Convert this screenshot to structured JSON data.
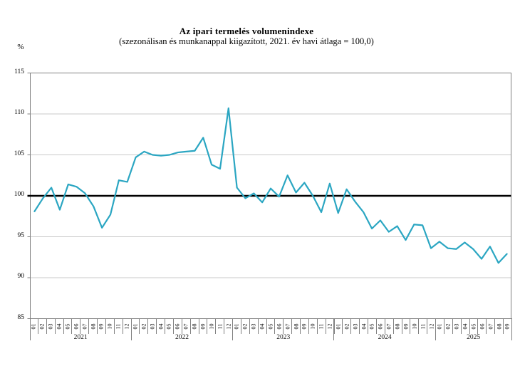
{
  "header": {
    "title": "Az ipari termelés volumenindexe",
    "subtitle": "(szezonálisan és munkanappal kiigazított, 2021. év havi átlaga = 100,0)"
  },
  "axes": {
    "y_unit": "%",
    "y_ticks": [
      115,
      110,
      105,
      100,
      95,
      90,
      85
    ],
    "baseline_value": 100
  },
  "colors": {
    "line": "#2BA6C2",
    "baseline": "#000000",
    "gridline": "#C9C9C9",
    "frame": "#808080"
  },
  "chart_data": {
    "type": "line",
    "title": "Az ipari termelés volumenindexe",
    "subtitle": "(szezonálisan és munkanappal kiigazított, 2021. év havi átlaga = 100,0)",
    "ylabel": "%",
    "ylim": [
      85,
      115
    ],
    "ytick_interval": 5,
    "baseline": 100,
    "grid": "horizontal",
    "legend": "none",
    "series": [
      {
        "name": "Ipari termelés volumenindexe (szezonálisan és munkanappal kiigazított)",
        "color": "#2BA6C2",
        "years": [
          {
            "year": "2021",
            "months": [
              "01",
              "02",
              "03",
              "04",
              "05",
              "06",
              "07",
              "08",
              "09",
              "10",
              "11",
              "12"
            ],
            "values": [
              98.1,
              99.7,
              101.0,
              98.3,
              101.4,
              101.1,
              100.3,
              98.7,
              96.1,
              97.7,
              101.9,
              101.7
            ]
          },
          {
            "year": "2022",
            "months": [
              "01",
              "02",
              "03",
              "04",
              "05",
              "06",
              "07",
              "08",
              "09",
              "10",
              "11",
              "12"
            ],
            "values": [
              104.7,
              105.4,
              105.0,
              104.9,
              105.0,
              105.3,
              105.4,
              105.5,
              107.1,
              103.8,
              103.3,
              110.7
            ]
          },
          {
            "year": "2023",
            "months": [
              "01",
              "02",
              "03",
              "04",
              "05",
              "06",
              "07",
              "08",
              "09",
              "10",
              "11",
              "12"
            ],
            "values": [
              101.0,
              99.7,
              100.3,
              99.2,
              100.9,
              99.9,
              102.5,
              100.4,
              101.6,
              100.0,
              98.0,
              101.5
            ]
          },
          {
            "year": "2024",
            "months": [
              "01",
              "02",
              "03",
              "04",
              "05",
              "06",
              "07",
              "08",
              "09",
              "10",
              "11",
              "12"
            ],
            "values": [
              97.9,
              100.8,
              99.3,
              98.0,
              96.0,
              97.0,
              95.6,
              96.3,
              94.6,
              96.5,
              96.4,
              93.6
            ]
          },
          {
            "year": "2025",
            "months": [
              "01",
              "02",
              "03",
              "04",
              "05",
              "06",
              "07",
              "08",
              "09"
            ],
            "values": [
              94.4,
              93.6,
              93.5,
              94.3,
              93.5,
              92.3,
              93.8,
              91.8,
              92.9
            ]
          }
        ]
      }
    ]
  }
}
